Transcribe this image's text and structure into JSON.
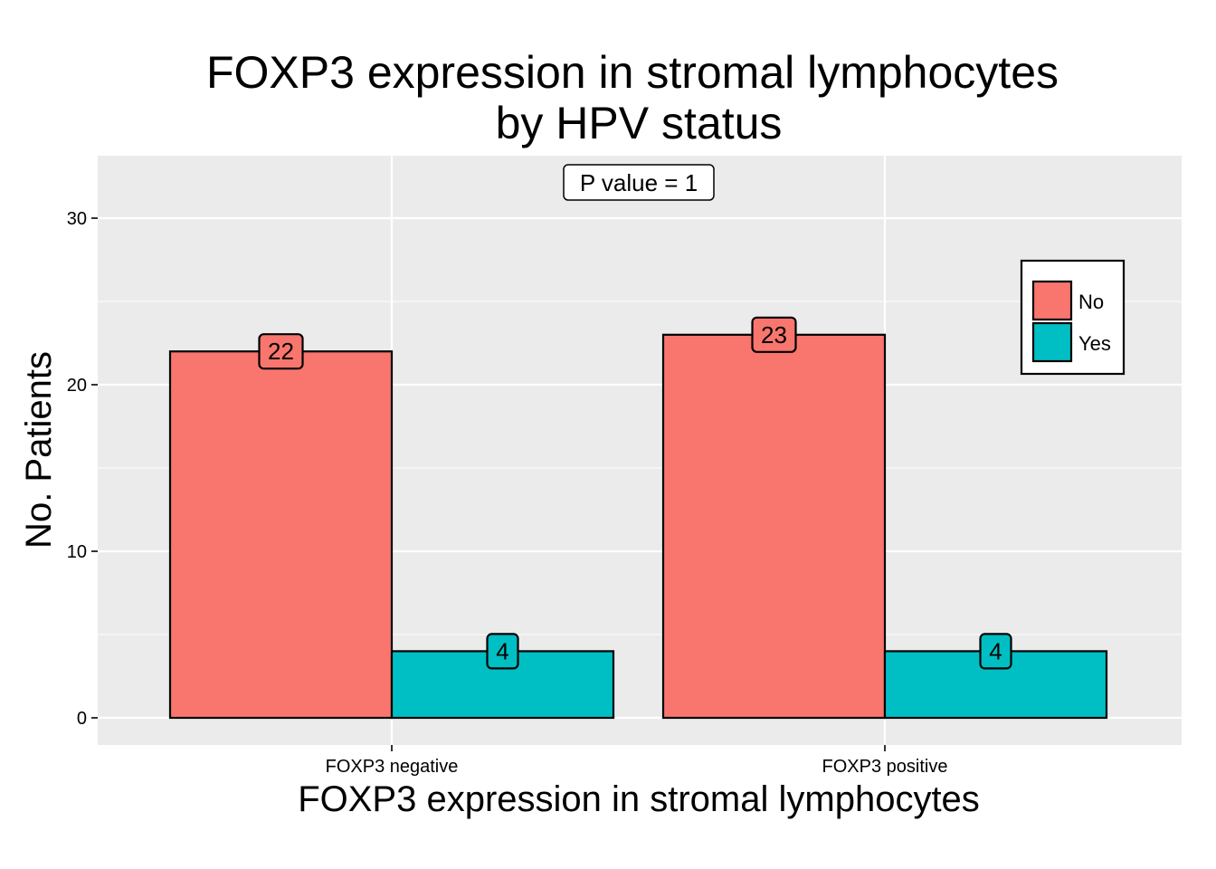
{
  "chart_data": {
    "type": "bar",
    "title_lines": [
      "FOXP3 expression in stromal lymphocytes",
      "by HPV status"
    ],
    "xlabel": "FOXP3 expression in stromal lymphocytes",
    "ylabel": "No. Patients",
    "categories": [
      "FOXP3 negative",
      "FOXP3 positive"
    ],
    "series": [
      {
        "name": "No",
        "values": [
          22,
          23
        ],
        "color": "#F8766D"
      },
      {
        "name": "Yes",
        "values": [
          4,
          4
        ],
        "color": "#00BFC4"
      }
    ],
    "y_ticks": [
      0,
      10,
      20,
      30
    ],
    "ylim": [
      -1.6,
      33.5
    ],
    "annotation": "P value = 1",
    "legend_position": "top-right",
    "grid": true,
    "panel_color": "#EBEBEB",
    "grid_color": "#FFFFFF"
  }
}
